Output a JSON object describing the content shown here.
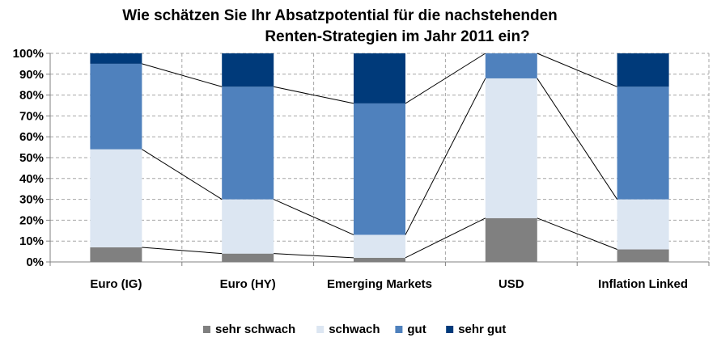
{
  "chart_data": {
    "type": "bar",
    "stacked": true,
    "title_lines": [
      "Wie schätzen Sie Ihr Absatzpotential für die nachstehenden",
      "Renten-Strategien im Jahr 2011 ein?"
    ],
    "categories": [
      "Euro (IG)",
      "Euro (HY)",
      "Emerging Markets",
      "USD",
      "Inflation Linked"
    ],
    "series": [
      {
        "name": "sehr schwach",
        "color": "#808080",
        "values": [
          7,
          4,
          2,
          21,
          6
        ]
      },
      {
        "name": "schwach",
        "color": "#dce6f2",
        "values": [
          47,
          26,
          11,
          67,
          24
        ]
      },
      {
        "name": "gut",
        "color": "#4f81bd",
        "values": [
          41,
          54,
          63,
          12,
          54
        ]
      },
      {
        "name": "sehr gut",
        "color": "#003a7a",
        "values": [
          5,
          16,
          24,
          0,
          16
        ]
      }
    ],
    "ylim": [
      0,
      100
    ],
    "yticks": [
      "0%",
      "10%",
      "20%",
      "30%",
      "40%",
      "50%",
      "60%",
      "70%",
      "80%",
      "90%",
      "100%"
    ],
    "grid": true,
    "series_lines": true,
    "legend_position": "bottom"
  }
}
